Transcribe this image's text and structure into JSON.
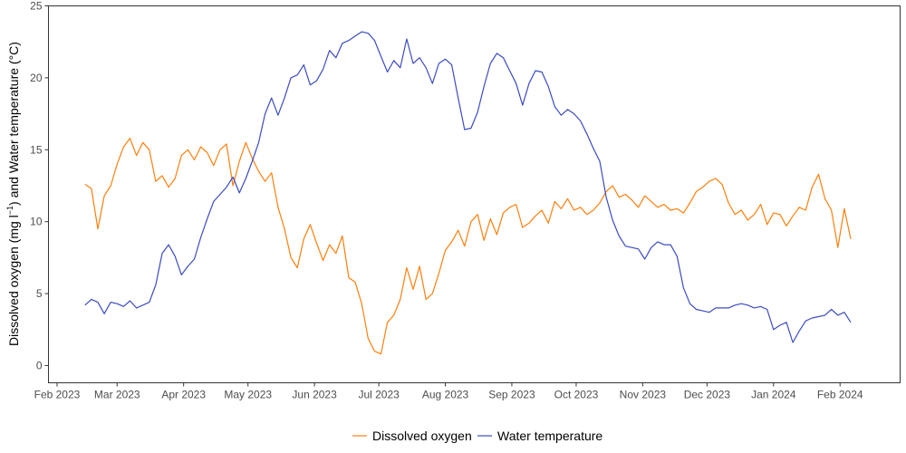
{
  "chart_data": {
    "type": "line",
    "ylabel_parts": [
      "Dissolved oxygen (mg l",
      "−1",
      ") and Water temperature (°C)"
    ],
    "ylim": [
      -1.2,
      25
    ],
    "yticks": [
      0,
      5,
      10,
      15,
      20,
      25
    ],
    "xlim": [
      "2023-01-28",
      "2024-02-29"
    ],
    "xticks": [
      {
        "date": "2023-02-01",
        "label": "Feb 2023"
      },
      {
        "date": "2023-03-01",
        "label": "Mar 2023"
      },
      {
        "date": "2023-04-01",
        "label": "Apr 2023"
      },
      {
        "date": "2023-05-01",
        "label": "May 2023"
      },
      {
        "date": "2023-06-01",
        "label": "Jun 2023"
      },
      {
        "date": "2023-07-01",
        "label": "Jul 2023"
      },
      {
        "date": "2023-08-01",
        "label": "Aug 2023"
      },
      {
        "date": "2023-09-01",
        "label": "Sep 2023"
      },
      {
        "date": "2023-10-01",
        "label": "Oct 2023"
      },
      {
        "date": "2023-11-01",
        "label": "Nov 2023"
      },
      {
        "date": "2023-12-01",
        "label": "Dec 2023"
      },
      {
        "date": "2024-01-01",
        "label": "Jan 2024"
      },
      {
        "date": "2024-02-01",
        "label": "Feb 2024"
      }
    ],
    "grid": false,
    "legend_position": "bottom",
    "series": [
      {
        "name": "Dissolved oxygen",
        "color": "#ff7f0e",
        "x": [
          "2023-02-14",
          "2023-02-17",
          "2023-02-20",
          "2023-02-23",
          "2023-02-26",
          "2023-03-01",
          "2023-03-04",
          "2023-03-07",
          "2023-03-10",
          "2023-03-13",
          "2023-03-16",
          "2023-03-19",
          "2023-03-22",
          "2023-03-25",
          "2023-03-28",
          "2023-03-31",
          "2023-04-03",
          "2023-04-06",
          "2023-04-09",
          "2023-04-12",
          "2023-04-15",
          "2023-04-18",
          "2023-04-21",
          "2023-04-24",
          "2023-04-27",
          "2023-04-30",
          "2023-05-03",
          "2023-05-06",
          "2023-05-09",
          "2023-05-12",
          "2023-05-15",
          "2023-05-18",
          "2023-05-21",
          "2023-05-24",
          "2023-05-27",
          "2023-05-30",
          "2023-06-02",
          "2023-06-05",
          "2023-06-08",
          "2023-06-11",
          "2023-06-14",
          "2023-06-17",
          "2023-06-20",
          "2023-06-23",
          "2023-06-26",
          "2023-06-29",
          "2023-07-02",
          "2023-07-05",
          "2023-07-08",
          "2023-07-11",
          "2023-07-14",
          "2023-07-17",
          "2023-07-20",
          "2023-07-23",
          "2023-07-26",
          "2023-07-29",
          "2023-08-01",
          "2023-08-04",
          "2023-08-07",
          "2023-08-10",
          "2023-08-13",
          "2023-08-16",
          "2023-08-19",
          "2023-08-22",
          "2023-08-25",
          "2023-08-28",
          "2023-08-31",
          "2023-09-03",
          "2023-09-06",
          "2023-09-09",
          "2023-09-12",
          "2023-09-15",
          "2023-09-18",
          "2023-09-21",
          "2023-09-24",
          "2023-09-27",
          "2023-09-30",
          "2023-10-03",
          "2023-10-06",
          "2023-10-09",
          "2023-10-12",
          "2023-10-15",
          "2023-10-18",
          "2023-10-21",
          "2023-10-24",
          "2023-10-27",
          "2023-10-30",
          "2023-11-02",
          "2023-11-05",
          "2023-11-08",
          "2023-11-11",
          "2023-11-14",
          "2023-11-17",
          "2023-11-20",
          "2023-11-23",
          "2023-11-26",
          "2023-11-29",
          "2023-12-02",
          "2023-12-05",
          "2023-12-08",
          "2023-12-11",
          "2023-12-14",
          "2023-12-17",
          "2023-12-20",
          "2023-12-23",
          "2023-12-26",
          "2023-12-29",
          "2024-01-01",
          "2024-01-04",
          "2024-01-07",
          "2024-01-10",
          "2024-01-13",
          "2024-01-16",
          "2024-01-19",
          "2024-01-22",
          "2024-01-25",
          "2024-01-28",
          "2024-01-31",
          "2024-02-03",
          "2024-02-06"
        ],
        "y": [
          12.6,
          12.3,
          9.5,
          11.8,
          12.5,
          14.0,
          15.2,
          15.8,
          14.6,
          15.5,
          15.0,
          12.8,
          13.2,
          12.4,
          13.0,
          14.6,
          15.0,
          14.3,
          15.2,
          14.8,
          13.9,
          15.0,
          15.4,
          12.5,
          14.2,
          15.5,
          14.4,
          13.5,
          12.8,
          13.4,
          11.0,
          9.5,
          7.5,
          6.8,
          8.8,
          9.8,
          8.5,
          7.3,
          8.4,
          7.8,
          9.0,
          6.1,
          5.8,
          4.3,
          1.9,
          1.0,
          0.8,
          3.0,
          3.5,
          4.6,
          6.8,
          5.3,
          6.9,
          4.6,
          5.0,
          6.4,
          8.0,
          8.6,
          9.4,
          8.3,
          10.0,
          10.5,
          8.7,
          10.2,
          9.1,
          10.6,
          11.0,
          11.2,
          9.6,
          9.9,
          10.4,
          10.8,
          9.9,
          11.4,
          10.9,
          11.6,
          10.8,
          11.0,
          10.5,
          10.8,
          11.3,
          12.1,
          12.5,
          11.7,
          11.9,
          11.5,
          11.0,
          11.8,
          11.4,
          11.0,
          11.2,
          10.8,
          10.9,
          10.6,
          11.3,
          12.1,
          12.4,
          12.8,
          13.0,
          12.6,
          11.3,
          10.5,
          10.8,
          10.1,
          10.5,
          11.2,
          9.8,
          10.6,
          10.5,
          9.7,
          10.4,
          11.0,
          10.8,
          12.4,
          13.3,
          11.6,
          10.8,
          8.2,
          10.9,
          8.8
        ]
      },
      {
        "name": "Water temperature",
        "color": "#3b4cc0",
        "x": [
          "2023-02-14",
          "2023-02-17",
          "2023-02-20",
          "2023-02-23",
          "2023-02-26",
          "2023-03-01",
          "2023-03-04",
          "2023-03-07",
          "2023-03-10",
          "2023-03-13",
          "2023-03-16",
          "2023-03-19",
          "2023-03-22",
          "2023-03-25",
          "2023-03-28",
          "2023-03-31",
          "2023-04-03",
          "2023-04-06",
          "2023-04-09",
          "2023-04-12",
          "2023-04-15",
          "2023-04-18",
          "2023-04-21",
          "2023-04-24",
          "2023-04-27",
          "2023-04-30",
          "2023-05-03",
          "2023-05-06",
          "2023-05-09",
          "2023-05-12",
          "2023-05-15",
          "2023-05-18",
          "2023-05-21",
          "2023-05-24",
          "2023-05-27",
          "2023-05-30",
          "2023-06-02",
          "2023-06-05",
          "2023-06-08",
          "2023-06-11",
          "2023-06-14",
          "2023-06-17",
          "2023-06-20",
          "2023-06-23",
          "2023-06-26",
          "2023-06-29",
          "2023-07-02",
          "2023-07-05",
          "2023-07-08",
          "2023-07-11",
          "2023-07-14",
          "2023-07-17",
          "2023-07-20",
          "2023-07-23",
          "2023-07-26",
          "2023-07-29",
          "2023-08-01",
          "2023-08-04",
          "2023-08-07",
          "2023-08-10",
          "2023-08-13",
          "2023-08-16",
          "2023-08-19",
          "2023-08-22",
          "2023-08-25",
          "2023-08-28",
          "2023-08-31",
          "2023-09-03",
          "2023-09-06",
          "2023-09-09",
          "2023-09-12",
          "2023-09-15",
          "2023-09-18",
          "2023-09-21",
          "2023-09-24",
          "2023-09-27",
          "2023-09-30",
          "2023-10-03",
          "2023-10-06",
          "2023-10-09",
          "2023-10-12",
          "2023-10-15",
          "2023-10-18",
          "2023-10-21",
          "2023-10-24",
          "2023-10-27",
          "2023-10-30",
          "2023-11-02",
          "2023-11-05",
          "2023-11-08",
          "2023-11-11",
          "2023-11-14",
          "2023-11-17",
          "2023-11-20",
          "2023-11-23",
          "2023-11-26",
          "2023-11-29",
          "2023-12-02",
          "2023-12-05",
          "2023-12-08",
          "2023-12-11",
          "2023-12-14",
          "2023-12-17",
          "2023-12-20",
          "2023-12-23",
          "2023-12-26",
          "2023-12-29",
          "2024-01-01",
          "2024-01-04",
          "2024-01-07",
          "2024-01-10",
          "2024-01-13",
          "2024-01-16",
          "2024-01-19",
          "2024-01-22",
          "2024-01-25",
          "2024-01-28",
          "2024-01-31",
          "2024-02-03",
          "2024-02-06"
        ],
        "y": [
          4.2,
          4.6,
          4.4,
          3.6,
          4.4,
          4.3,
          4.1,
          4.5,
          4.0,
          4.2,
          4.4,
          5.6,
          7.8,
          8.4,
          7.6,
          6.3,
          6.9,
          7.4,
          8.9,
          10.2,
          11.4,
          11.9,
          12.4,
          13.1,
          12.0,
          13.0,
          14.2,
          15.5,
          17.5,
          18.6,
          17.4,
          18.6,
          20.0,
          20.2,
          20.9,
          19.5,
          19.8,
          20.6,
          21.9,
          21.4,
          22.4,
          22.6,
          22.9,
          23.2,
          23.1,
          22.6,
          21.5,
          20.4,
          21.2,
          20.7,
          22.7,
          21.0,
          21.4,
          20.7,
          19.6,
          21.0,
          21.3,
          20.9,
          18.6,
          16.4,
          16.5,
          17.6,
          19.4,
          21.0,
          21.7,
          21.4,
          20.5,
          19.6,
          18.1,
          19.6,
          20.5,
          20.4,
          19.4,
          18.0,
          17.4,
          17.8,
          17.5,
          17.0,
          16.1,
          15.1,
          14.2,
          11.7,
          10.1,
          9.0,
          8.3,
          8.2,
          8.1,
          7.4,
          8.2,
          8.6,
          8.4,
          8.4,
          7.6,
          5.4,
          4.3,
          3.9,
          3.8,
          3.7,
          4.0,
          4.0,
          4.0,
          4.2,
          4.3,
          4.2,
          4.0,
          4.1,
          3.9,
          2.5,
          2.8,
          3.0,
          1.6,
          2.4,
          3.1,
          3.3,
          3.4,
          3.5,
          3.9,
          3.5,
          3.7,
          3.0
        ]
      }
    ]
  }
}
